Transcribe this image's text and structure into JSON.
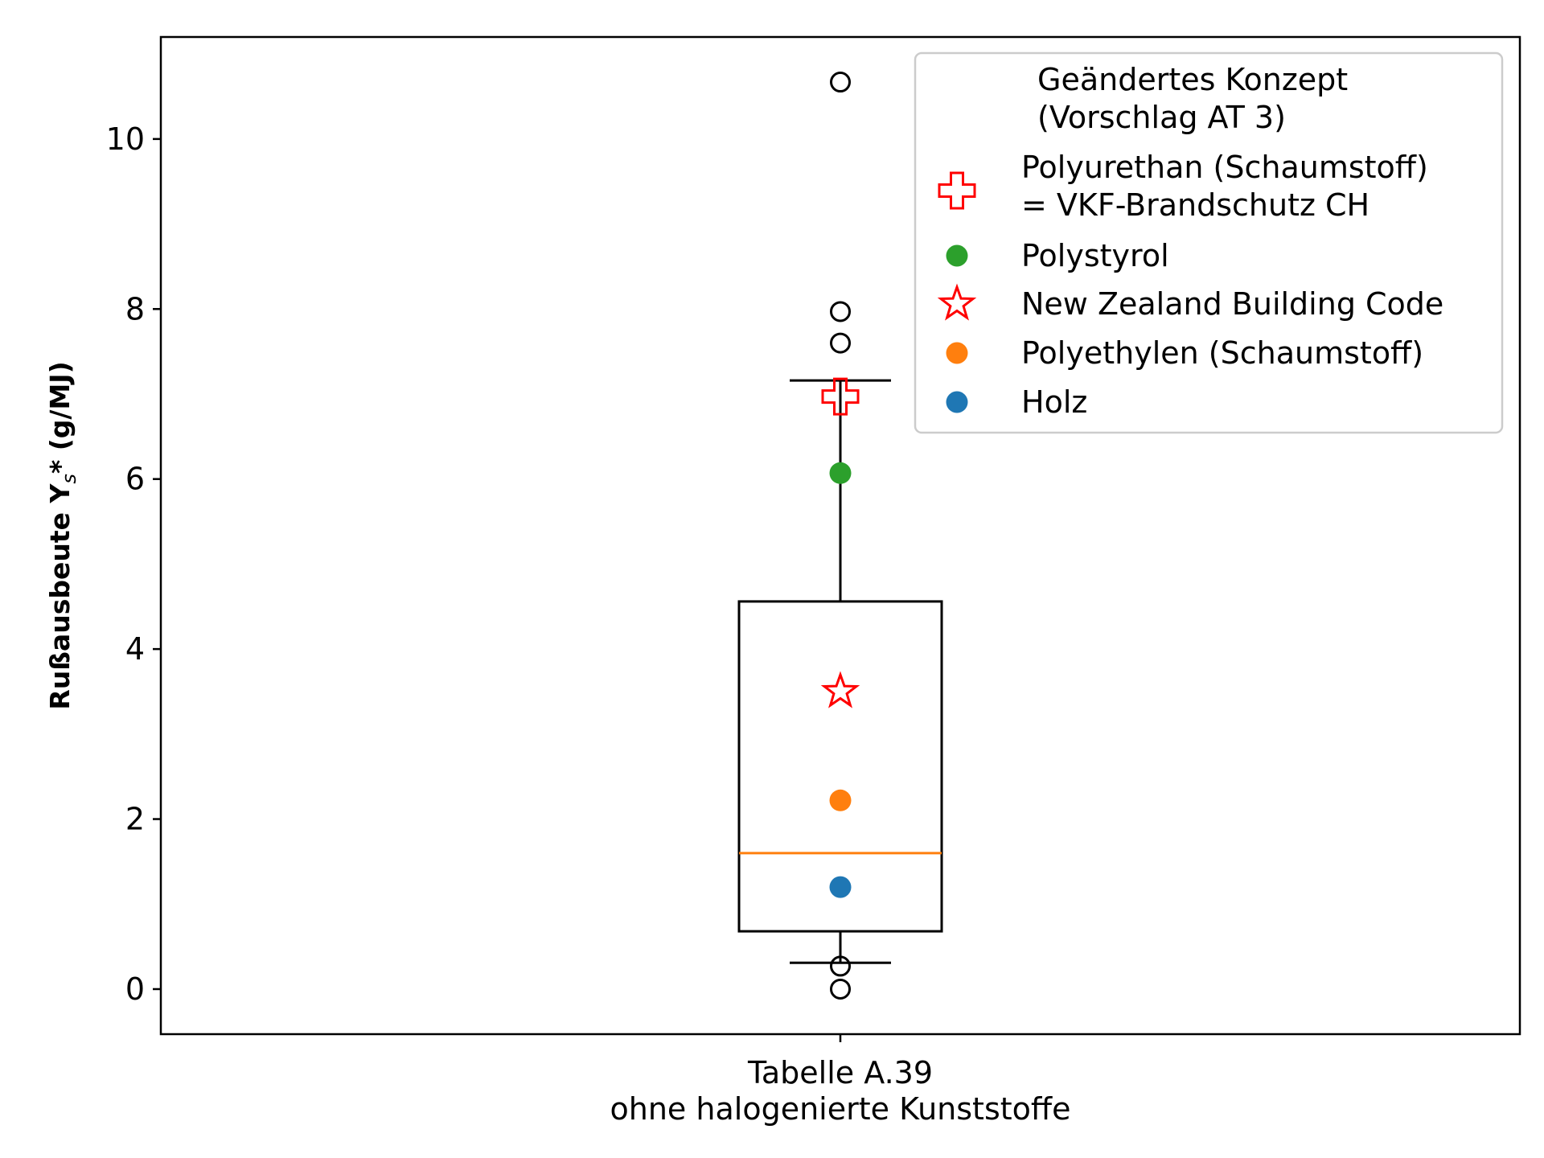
{
  "chart_data": {
    "type": "box",
    "title": "",
    "xlabel": "",
    "ylabel": {
      "prefix": "Rußausbeute Y",
      "subscript": "s",
      "suffix": "* (g/MJ)"
    },
    "ylim": [
      -0.53,
      11.2
    ],
    "yticks": [
      0,
      2,
      4,
      6,
      8,
      10
    ],
    "category": {
      "line1": "Tabelle A.39",
      "line2": "ohne halogenierte Kunststoffe"
    },
    "box": {
      "whisker_low": 0.31,
      "q1": 0.68,
      "median": 1.6,
      "q3": 4.56,
      "whisker_high": 7.16,
      "outliers": [
        0.0,
        0.27,
        7.6,
        7.97,
        10.67
      ]
    },
    "markers": [
      {
        "label": "Polyurethan (Schaumstoff)\n= VKF-Brandschutz CH",
        "value": 6.97,
        "shape": "cross",
        "color": "#ff0000"
      },
      {
        "label": "Polystyrol",
        "value": 6.07,
        "shape": "dot",
        "color": "#2ca02c"
      },
      {
        "label": "New Zealand Building Code",
        "value": 3.5,
        "shape": "star",
        "color": "#ff0000"
      },
      {
        "label": "Polyethylen (Schaumstoff)",
        "value": 2.22,
        "shape": "dot",
        "color": "#ff7f0e"
      },
      {
        "label": "Holz",
        "value": 1.2,
        "shape": "dot",
        "color": "#1f77b4"
      }
    ],
    "legend": {
      "position": "top-right",
      "title_lines": [
        "Geändertes Konzept",
        "(Vorschlag AT 3)"
      ]
    },
    "colors": {
      "median": "#ff7f0e",
      "box": "#000000"
    }
  }
}
